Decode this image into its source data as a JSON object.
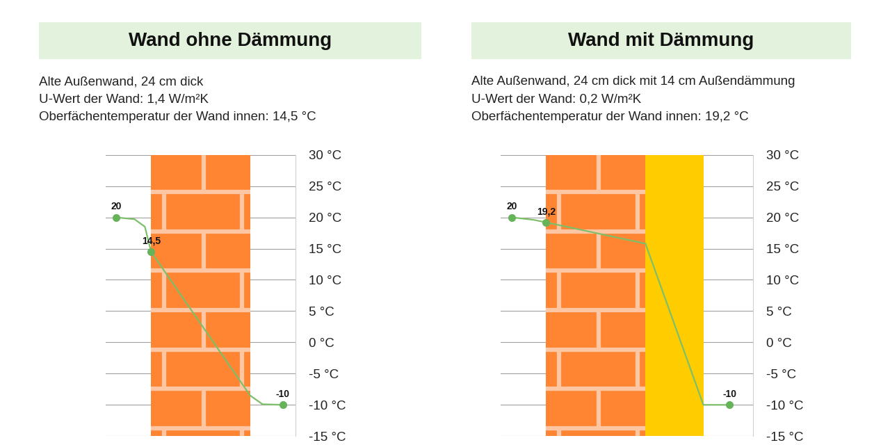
{
  "chart_data": [
    {
      "type": "line",
      "title": "Wand ohne Dämmung",
      "subtitle": [
        "Alte Außenwand, 24 cm dick",
        "U-Wert der Wand: 1,4 W/m²K",
        "Oberfächentemperatur der Wand innen: 14,5 °C"
      ],
      "x": [
        -8.5,
        -4,
        -1.5,
        0,
        24,
        27,
        31.9
      ],
      "values": [
        20,
        19.7,
        18.5,
        14.5,
        -8.5,
        -9.9,
        -10
      ],
      "value_labels": [
        "20",
        null,
        null,
        "14,5",
        null,
        null,
        "-10"
      ],
      "data_labels": true,
      "xlim": [
        -11,
        35
      ],
      "ylim": [
        -15,
        30
      ],
      "yticks": [
        {
          "value": 30,
          "label": "30 °C"
        },
        {
          "value": 25,
          "label": "25 °C"
        },
        {
          "value": 20,
          "label": "20 °C"
        },
        {
          "value": 15,
          "label": "15 °C"
        },
        {
          "value": 10,
          "label": "10 °C"
        },
        {
          "value": 5,
          "label": "5 °C"
        },
        {
          "value": 0,
          "label": "0 °C"
        },
        {
          "value": -5,
          "label": "-5 °C"
        },
        {
          "value": -10,
          "label": "-10 °C"
        },
        {
          "value": -15,
          "label": "-15 °C"
        }
      ],
      "tick_labels": "y",
      "grid": true,
      "color": "#7dbf6a",
      "marker": "o",
      "line_style": "solid",
      "wall_x": [
        0,
        24
      ]
    },
    {
      "type": "line",
      "title": "Wand mit Dämmung",
      "subtitle": [
        "Alte Außenwand, 24 cm dick mit 14 cm Außendämmung",
        "U-Wert der Wand: 0,2 W/m²K",
        "Oberfächentemperatur der Wand innen: 19,2 °C"
      ],
      "x": [
        -8.3,
        -3,
        0,
        24,
        38,
        44.3
      ],
      "values": [
        20,
        19.6,
        19.2,
        15.8,
        -10,
        -10
      ],
      "value_labels": [
        "20",
        null,
        "19,2",
        null,
        null,
        "-10"
      ],
      "data_labels": true,
      "xlim": [
        -11,
        50
      ],
      "ylim": [
        -15,
        30
      ],
      "yticks": [
        {
          "value": 30,
          "label": "30 °C"
        },
        {
          "value": 25,
          "label": "25 °C"
        },
        {
          "value": 20,
          "label": "20 °C"
        },
        {
          "value": 15,
          "label": "15 °C"
        },
        {
          "value": 10,
          "label": "10 °C"
        },
        {
          "value": 5,
          "label": "5 °C"
        },
        {
          "value": 0,
          "label": "0 °C"
        },
        {
          "value": -5,
          "label": "-5 °C"
        },
        {
          "value": -10,
          "label": "-10 °C"
        },
        {
          "value": -15,
          "label": "-15 °C"
        }
      ],
      "tick_labels": "y",
      "grid": true,
      "color": "#7dbf6a",
      "marker": "o",
      "line_style": "solid",
      "wall_x": [
        0,
        24
      ],
      "insulation_x": [
        24,
        38
      ]
    }
  ]
}
